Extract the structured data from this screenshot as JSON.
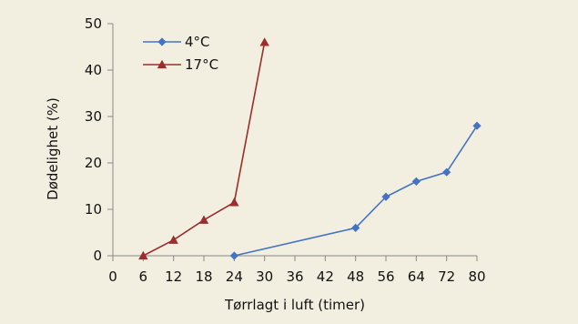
{
  "chart_data": {
    "type": "line",
    "xlabel": "Tørrlagt i luft (timer)",
    "ylabel": "Dødelighet (%)",
    "ylim": [
      0,
      50
    ],
    "yticks": [
      0,
      10,
      20,
      30,
      40,
      50
    ],
    "xtick_labels": [
      "0",
      "6",
      "12",
      "18",
      "24",
      "30",
      "36",
      "42",
      "48",
      "56",
      "64",
      "72",
      "80"
    ],
    "legend_position": "top-left",
    "grid": false,
    "series": [
      {
        "name": "4°C",
        "color": "#4472c4",
        "marker": "diamond",
        "points": [
          [
            24,
            0
          ],
          [
            48,
            6
          ],
          [
            56,
            12.7
          ],
          [
            64,
            16
          ],
          [
            72,
            18
          ],
          [
            80,
            28
          ]
        ]
      },
      {
        "name": "17°C",
        "color": "#9b2d2d",
        "marker": "triangle",
        "points": [
          [
            6,
            0
          ],
          [
            12,
            3.4
          ],
          [
            18,
            7.7
          ],
          [
            24,
            11.5
          ],
          [
            30,
            46
          ]
        ]
      }
    ]
  }
}
